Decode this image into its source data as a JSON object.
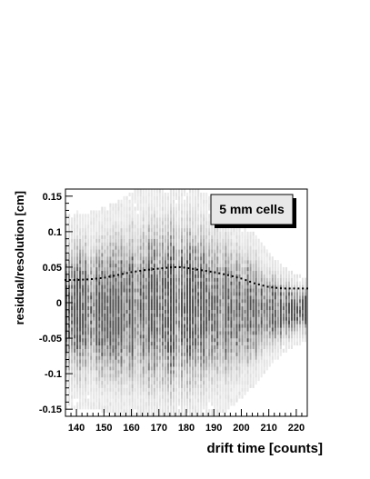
{
  "chart_data": {
    "type": "heatmap",
    "title": "",
    "xlabel": "drift time [counts]",
    "ylabel": "residual/resolution [cm]",
    "xlim": [
      136,
      224
    ],
    "ylim": [
      -0.16,
      0.16
    ],
    "x_ticks": [
      140,
      150,
      160,
      170,
      180,
      190,
      200,
      210,
      220
    ],
    "x_tick_labels": [
      "140",
      "150",
      "160",
      "170",
      "180",
      "190",
      "200",
      "210",
      "220"
    ],
    "y_ticks": [
      -0.15,
      -0.1,
      -0.05,
      0,
      0.05,
      0.1,
      0.15
    ],
    "y_tick_labels": [
      "-0.15",
      "-0.1",
      "-0.05",
      "0",
      "0.05",
      "0.1",
      "0.15"
    ],
    "grid": false,
    "legend": {
      "text": "5 mm cells",
      "placement": "top-right"
    },
    "density_profile": {
      "x": [
        136,
        140,
        145,
        150,
        155,
        160,
        165,
        170,
        175,
        180,
        185,
        190,
        195,
        200,
        205,
        210,
        215,
        220,
        224
      ],
      "center": [
        -0.01,
        -0.01,
        -0.01,
        -0.01,
        -0.008,
        -0.006,
        -0.005,
        -0.004,
        -0.004,
        -0.004,
        -0.005,
        -0.006,
        -0.008,
        -0.01,
        -0.01,
        -0.01,
        -0.01,
        -0.01,
        -0.01
      ],
      "spread": [
        0.11,
        0.11,
        0.11,
        0.115,
        0.12,
        0.13,
        0.135,
        0.14,
        0.14,
        0.135,
        0.13,
        0.125,
        0.115,
        0.1,
        0.085,
        0.065,
        0.05,
        0.04,
        0.035
      ]
    },
    "series": [
      {
        "type": "dotted-line",
        "x": [
          136,
          140,
          145,
          150,
          155,
          160,
          165,
          170,
          175,
          178,
          180,
          185,
          190,
          195,
          200,
          205,
          210,
          215,
          220,
          224
        ],
        "y": [
          0.032,
          0.032,
          0.033,
          0.035,
          0.039,
          0.043,
          0.046,
          0.048,
          0.05,
          0.05,
          0.049,
          0.046,
          0.043,
          0.039,
          0.034,
          0.027,
          0.022,
          0.02,
          0.02,
          0.02
        ]
      }
    ]
  }
}
